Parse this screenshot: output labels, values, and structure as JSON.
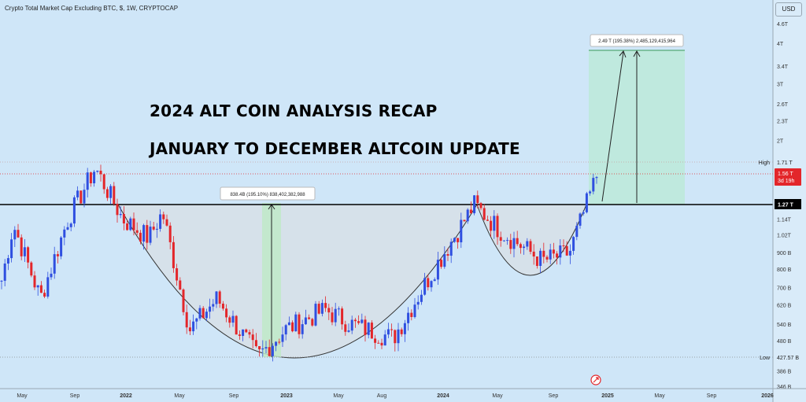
{
  "header": {
    "title": "Crypto Total Market Cap Excluding BTC, $, 1W, CRYPTOCAP"
  },
  "headline": {
    "line1": "2024 ALT COIN ANALYSIS RECAP",
    "line2": "JANUARY TO DECEMBER ALTCOIN UPDATE"
  },
  "price_scale": {
    "currency": "USD",
    "ticks": [
      "4.6T",
      "4T",
      "3.4T",
      "3T",
      "2.6T",
      "2.3T",
      "2T",
      "1.14T",
      "1.02T",
      "900 B",
      "800 B",
      "700 B",
      "620 B",
      "540 B",
      "480 B",
      "386 B",
      "346 B"
    ],
    "high_label": "High",
    "high_value": "1.71 T",
    "current_value": "1.56 T",
    "countdown": "3d 19h",
    "level_value": "1.27 T",
    "low_label": "Low",
    "low_value": "427.57 B"
  },
  "time_axis": {
    "labels": [
      "May",
      "Sep",
      "2022",
      "May",
      "Sep",
      "2023",
      "May",
      "Aug",
      "2024",
      "May",
      "Sep",
      "2025",
      "May",
      "Sep",
      "2026"
    ]
  },
  "measures": {
    "first": "838.4B (195.10%) 838,402,382,988",
    "second": "2.49 T (195.38%) 2,485,129,415,964"
  },
  "colors": {
    "background": "#cfe6f8",
    "up": "#2f4fe0",
    "down": "#e3262a",
    "level": "#000000",
    "target_zone": "#bfe9de",
    "cup_fill": "#d6e1ea"
  },
  "chart_data": {
    "type": "candlestick",
    "title": "Crypto Total Market Cap Excluding BTC, $, 1W, CRYPTOCAP",
    "y_scale": "log",
    "ylim": [
      346000000000,
      4800000000000
    ],
    "x_range": [
      "2021-04",
      "2026-01"
    ],
    "approx_close_path": [
      {
        "x": "2021-04",
        "y": 700000000000
      },
      {
        "x": "2021-05",
        "y": 1100000000000
      },
      {
        "x": "2021-07",
        "y": 650000000000
      },
      {
        "x": "2021-09",
        "y": 1150000000000
      },
      {
        "x": "2021-11",
        "y": 1650000000000
      },
      {
        "x": "2022-01",
        "y": 1150000000000
      },
      {
        "x": "2022-03",
        "y": 1000000000000
      },
      {
        "x": "2022-04",
        "y": 1200000000000
      },
      {
        "x": "2022-06",
        "y": 520000000000
      },
      {
        "x": "2022-08",
        "y": 650000000000
      },
      {
        "x": "2022-11",
        "y": 430000000000
      },
      {
        "x": "2023-01",
        "y": 520000000000
      },
      {
        "x": "2023-04",
        "y": 600000000000
      },
      {
        "x": "2023-06",
        "y": 540000000000
      },
      {
        "x": "2023-09",
        "y": 490000000000
      },
      {
        "x": "2023-12",
        "y": 800000000000
      },
      {
        "x": "2024-03",
        "y": 1270000000000
      },
      {
        "x": "2024-05",
        "y": 1050000000000
      },
      {
        "x": "2024-08",
        "y": 850000000000
      },
      {
        "x": "2024-10",
        "y": 900000000000
      },
      {
        "x": "2024-12",
        "y": 1560000000000
      }
    ],
    "levels": [
      {
        "name": "High",
        "value": 1710000000000
      },
      {
        "name": "Current",
        "value": 1560000000000
      },
      {
        "name": "Neckline",
        "value": 1270000000000
      },
      {
        "name": "Low",
        "value": 427570000000
      }
    ],
    "grid": false,
    "annotations": [
      "838.4B (195.10%) 838,402,382,988",
      "2.49 T (195.38%) 2,485,129,415,964"
    ]
  }
}
